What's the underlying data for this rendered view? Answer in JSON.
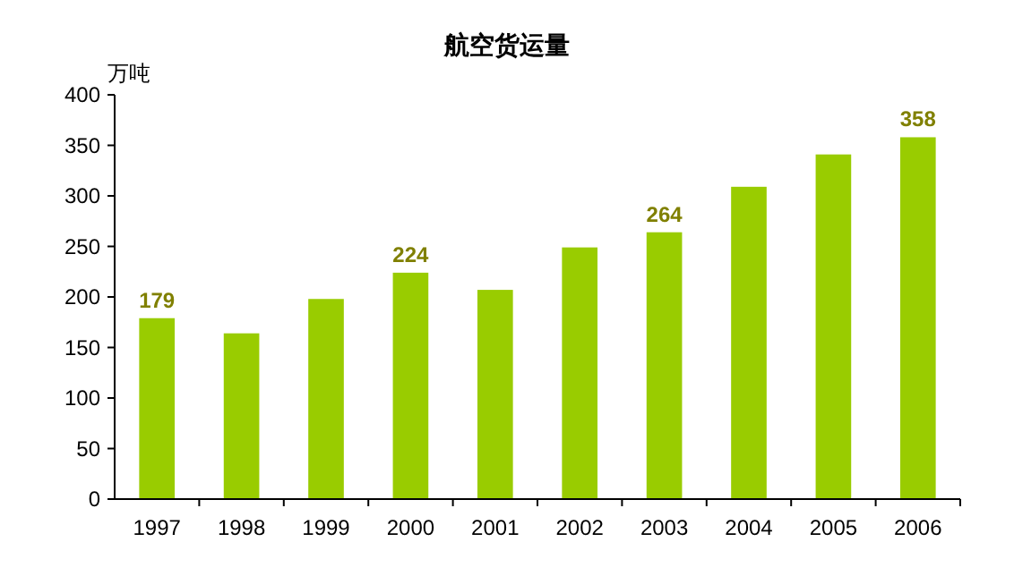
{
  "chart_data": {
    "type": "bar",
    "title": "航空货运量",
    "ylabel": "万吨",
    "categories": [
      "1997",
      "1998",
      "1999",
      "2000",
      "2001",
      "2002",
      "2003",
      "2004",
      "2005",
      "2006"
    ],
    "values": [
      179,
      164,
      198,
      224,
      207,
      249,
      264,
      309,
      341,
      358
    ],
    "value_labels": [
      "179",
      null,
      null,
      "224",
      null,
      null,
      "264",
      null,
      null,
      "358"
    ],
    "color": "#99cc00",
    "ylim": [
      0,
      400
    ],
    "yticks": [
      0,
      50,
      100,
      150,
      200,
      250,
      300,
      350,
      400
    ],
    "grid": false
  }
}
